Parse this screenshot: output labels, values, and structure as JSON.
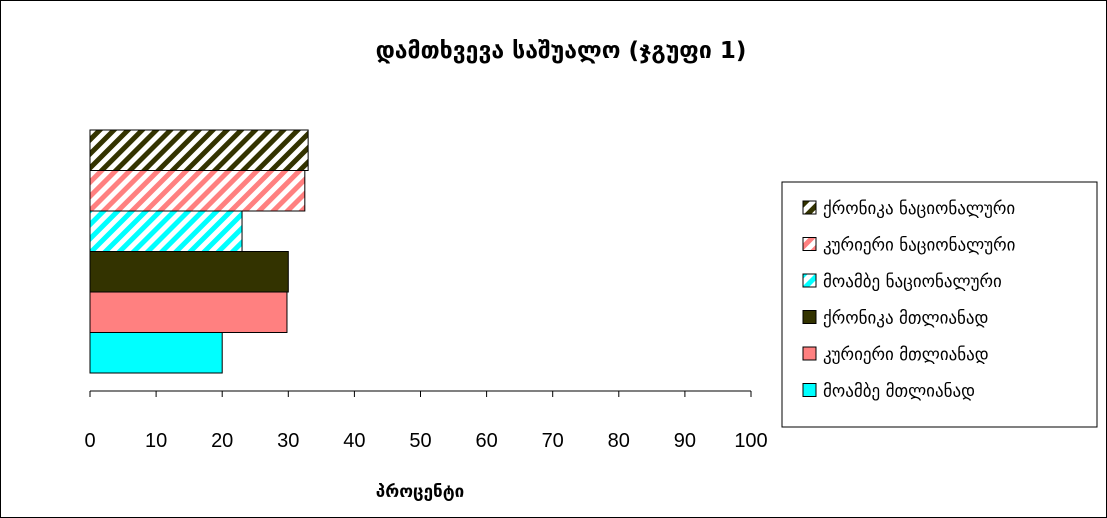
{
  "chart_data": {
    "type": "bar",
    "orientation": "horizontal",
    "title": "დამთხვევა საშუალო (ჯგუფი 1)",
    "xlabel": "პროცენტი",
    "ylabel": "",
    "xlim": [
      0,
      100
    ],
    "xticks": [
      0,
      10,
      20,
      30,
      40,
      50,
      60,
      70,
      80,
      90,
      100
    ],
    "grid": false,
    "legend_position": "right",
    "series": [
      {
        "name": "ქრონიკა ნაციონალური",
        "value": 33,
        "color": "#333300",
        "pattern": "striped"
      },
      {
        "name": "კურიერი ნაციონალური",
        "value": 32.5,
        "color": "#ff8080",
        "pattern": "striped"
      },
      {
        "name": "მოამბე ნაციონალური",
        "value": 23,
        "color": "#00ffff",
        "pattern": "striped"
      },
      {
        "name": "ქრონიკა მთლიანად",
        "value": 30,
        "color": "#333300",
        "pattern": "solid"
      },
      {
        "name": "კურიერი მთლიანად",
        "value": 29.8,
        "color": "#ff8080",
        "pattern": "solid"
      },
      {
        "name": "მოამბე მთლიანად",
        "value": 20,
        "color": "#00ffff",
        "pattern": "solid"
      }
    ]
  }
}
